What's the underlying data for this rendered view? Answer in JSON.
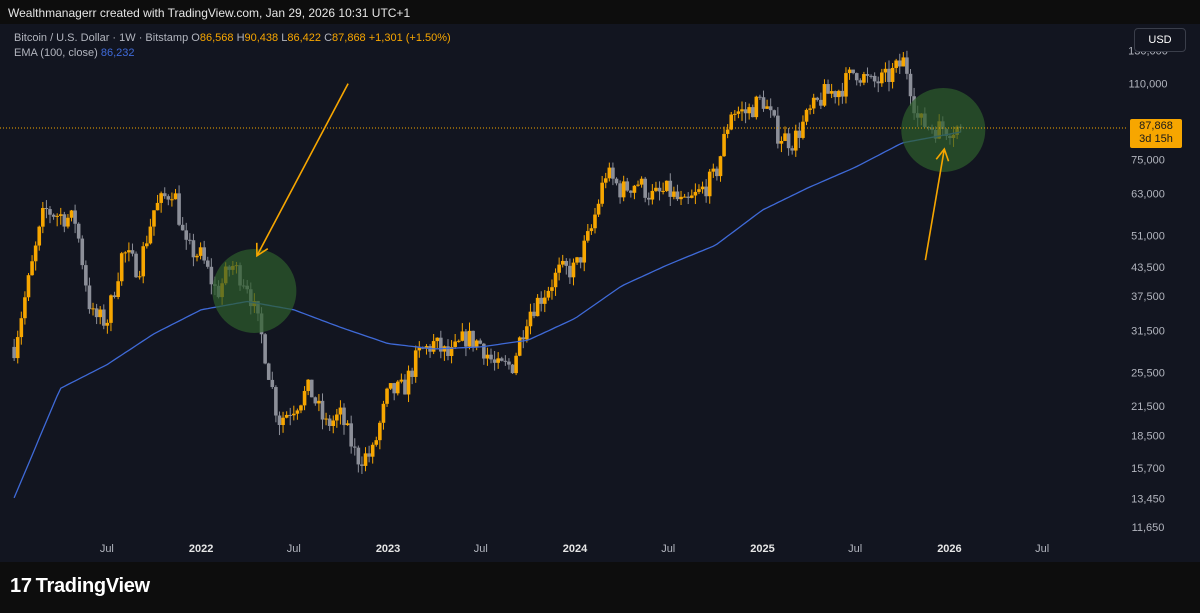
{
  "credit": "Wealthmanagerr created with TradingView.com, Jan 29, 2026 10:31 UTC+1",
  "legend": {
    "symbol": "Bitcoin / U.S. Dollar · 1W · Bitstamp",
    "o_label": "O",
    "o": "86,568",
    "h_label": "H",
    "h": "90,438",
    "l_label": "L",
    "l": "86,422",
    "c_label": "C",
    "c": "87,868",
    "change": "+1,301 (+1.50%)",
    "ema_label": "EMA (100, close)",
    "ema_value": "86,232"
  },
  "currency_button": "USD",
  "last_price": {
    "value": "87,868",
    "countdown": "3d 15h"
  },
  "brand": {
    "logo": "17",
    "name": "TradingView"
  },
  "colors": {
    "up": "#f7a600",
    "down": "#8c8f99",
    "ema": "#3f6ad8",
    "circle": "#2e5e2c",
    "arrow": "#f7a600"
  },
  "chart_data": {
    "type": "candlestick",
    "scale": "log",
    "ylim": [
      10800,
      140000
    ],
    "y_ticks": [
      "130,000",
      "110,000",
      "87,868",
      "75,000",
      "63,000",
      "51,000",
      "43,500",
      "37,500",
      "31,500",
      "25,500",
      "21,500",
      "18,500",
      "15,700",
      "13,450",
      "11,650"
    ],
    "x_ticks": [
      {
        "label": "Jul",
        "bold": false
      },
      {
        "label": "2022",
        "bold": true
      },
      {
        "label": "Jul",
        "bold": false
      },
      {
        "label": "2023",
        "bold": true
      },
      {
        "label": "Jul",
        "bold": false
      },
      {
        "label": "2024",
        "bold": true
      },
      {
        "label": "Jul",
        "bold": false
      },
      {
        "label": "2025",
        "bold": true
      },
      {
        "label": "Jul",
        "bold": false
      },
      {
        "label": "2026",
        "bold": true
      },
      {
        "label": "Jul",
        "bold": false
      }
    ],
    "close_path": [
      [
        "2021-01-01",
        29000
      ],
      [
        "2021-03-01",
        58000
      ],
      [
        "2021-05-01",
        55000
      ],
      [
        "2021-06-01",
        34000
      ],
      [
        "2021-07-01",
        33000
      ],
      [
        "2021-08-01",
        47000
      ],
      [
        "2021-09-01",
        43000
      ],
      [
        "2021-10-01",
        58000
      ],
      [
        "2021-11-08",
        65000
      ],
      [
        "2021-12-01",
        48000
      ],
      [
        "2022-01-01",
        46000
      ],
      [
        "2022-02-01",
        38000
      ],
      [
        "2022-03-01",
        44000
      ],
      [
        "2022-04-01",
        40000
      ],
      [
        "2022-05-01",
        30000
      ],
      [
        "2022-06-01",
        20000
      ],
      [
        "2022-07-01",
        21500
      ],
      [
        "2022-08-01",
        23500
      ],
      [
        "2022-09-01",
        19500
      ],
      [
        "2022-10-01",
        20500
      ],
      [
        "2022-11-01",
        16500
      ],
      [
        "2022-12-01",
        16800
      ],
      [
        "2023-01-01",
        23000
      ],
      [
        "2023-02-01",
        23500
      ],
      [
        "2023-03-01",
        28000
      ],
      [
        "2023-04-01",
        29500
      ],
      [
        "2023-05-01",
        27500
      ],
      [
        "2023-06-01",
        30500
      ],
      [
        "2023-07-01",
        29500
      ],
      [
        "2023-08-01",
        26000
      ],
      [
        "2023-09-01",
        26500
      ],
      [
        "2023-10-01",
        34500
      ],
      [
        "2023-11-01",
        38000
      ],
      [
        "2023-12-01",
        42500
      ],
      [
        "2024-01-01",
        43000
      ],
      [
        "2024-02-01",
        52000
      ],
      [
        "2024-03-01",
        70000
      ],
      [
        "2024-04-01",
        64000
      ],
      [
        "2024-05-01",
        67000
      ],
      [
        "2024-06-01",
        62000
      ],
      [
        "2024-07-01",
        64000
      ],
      [
        "2024-08-01",
        59000
      ],
      [
        "2024-09-01",
        63500
      ],
      [
        "2024-10-01",
        69000
      ],
      [
        "2024-11-01",
        96000
      ],
      [
        "2024-12-01",
        95000
      ],
      [
        "2025-01-01",
        102000
      ],
      [
        "2025-02-01",
        85000
      ],
      [
        "2025-03-01",
        82000
      ],
      [
        "2025-04-01",
        94000
      ],
      [
        "2025-05-01",
        104000
      ],
      [
        "2025-06-01",
        107000
      ],
      [
        "2025-07-01",
        118000
      ],
      [
        "2025-08-01",
        110000
      ],
      [
        "2025-09-01",
        113000
      ],
      [
        "2025-10-06",
        124000
      ],
      [
        "2025-11-01",
        91000
      ],
      [
        "2025-12-01",
        88000
      ],
      [
        "2026-01-26",
        87868
      ]
    ],
    "ema_path": [
      [
        "2021-01-01",
        13500
      ],
      [
        "2021-04-01",
        23500
      ],
      [
        "2021-07-01",
        26500
      ],
      [
        "2021-10-01",
        31000
      ],
      [
        "2022-01-01",
        35000
      ],
      [
        "2022-04-01",
        36500
      ],
      [
        "2022-07-01",
        35000
      ],
      [
        "2022-10-01",
        32000
      ],
      [
        "2023-01-01",
        29500
      ],
      [
        "2023-04-01",
        28700
      ],
      [
        "2023-07-01",
        29000
      ],
      [
        "2023-10-01",
        30000
      ],
      [
        "2024-01-01",
        33500
      ],
      [
        "2024-04-01",
        39500
      ],
      [
        "2024-07-01",
        44000
      ],
      [
        "2024-10-01",
        48500
      ],
      [
        "2025-01-01",
        58000
      ],
      [
        "2025-04-01",
        65000
      ],
      [
        "2025-07-01",
        72000
      ],
      [
        "2025-10-01",
        81500
      ],
      [
        "2026-01-26",
        86232
      ]
    ],
    "highlights": [
      {
        "date": "2022-04-15",
        "price": 38500,
        "label": ""
      },
      {
        "date": "2025-12-20",
        "price": 87000,
        "label": ""
      }
    ],
    "annotations": [
      {
        "type": "arrow",
        "from": [
          "2022-10-15",
          110000
        ],
        "to": [
          "2022-04-20",
          46000
        ]
      },
      {
        "type": "arrow",
        "from": [
          "2025-11-15",
          45000
        ],
        "to": [
          "2025-12-22",
          79000
        ]
      }
    ]
  }
}
